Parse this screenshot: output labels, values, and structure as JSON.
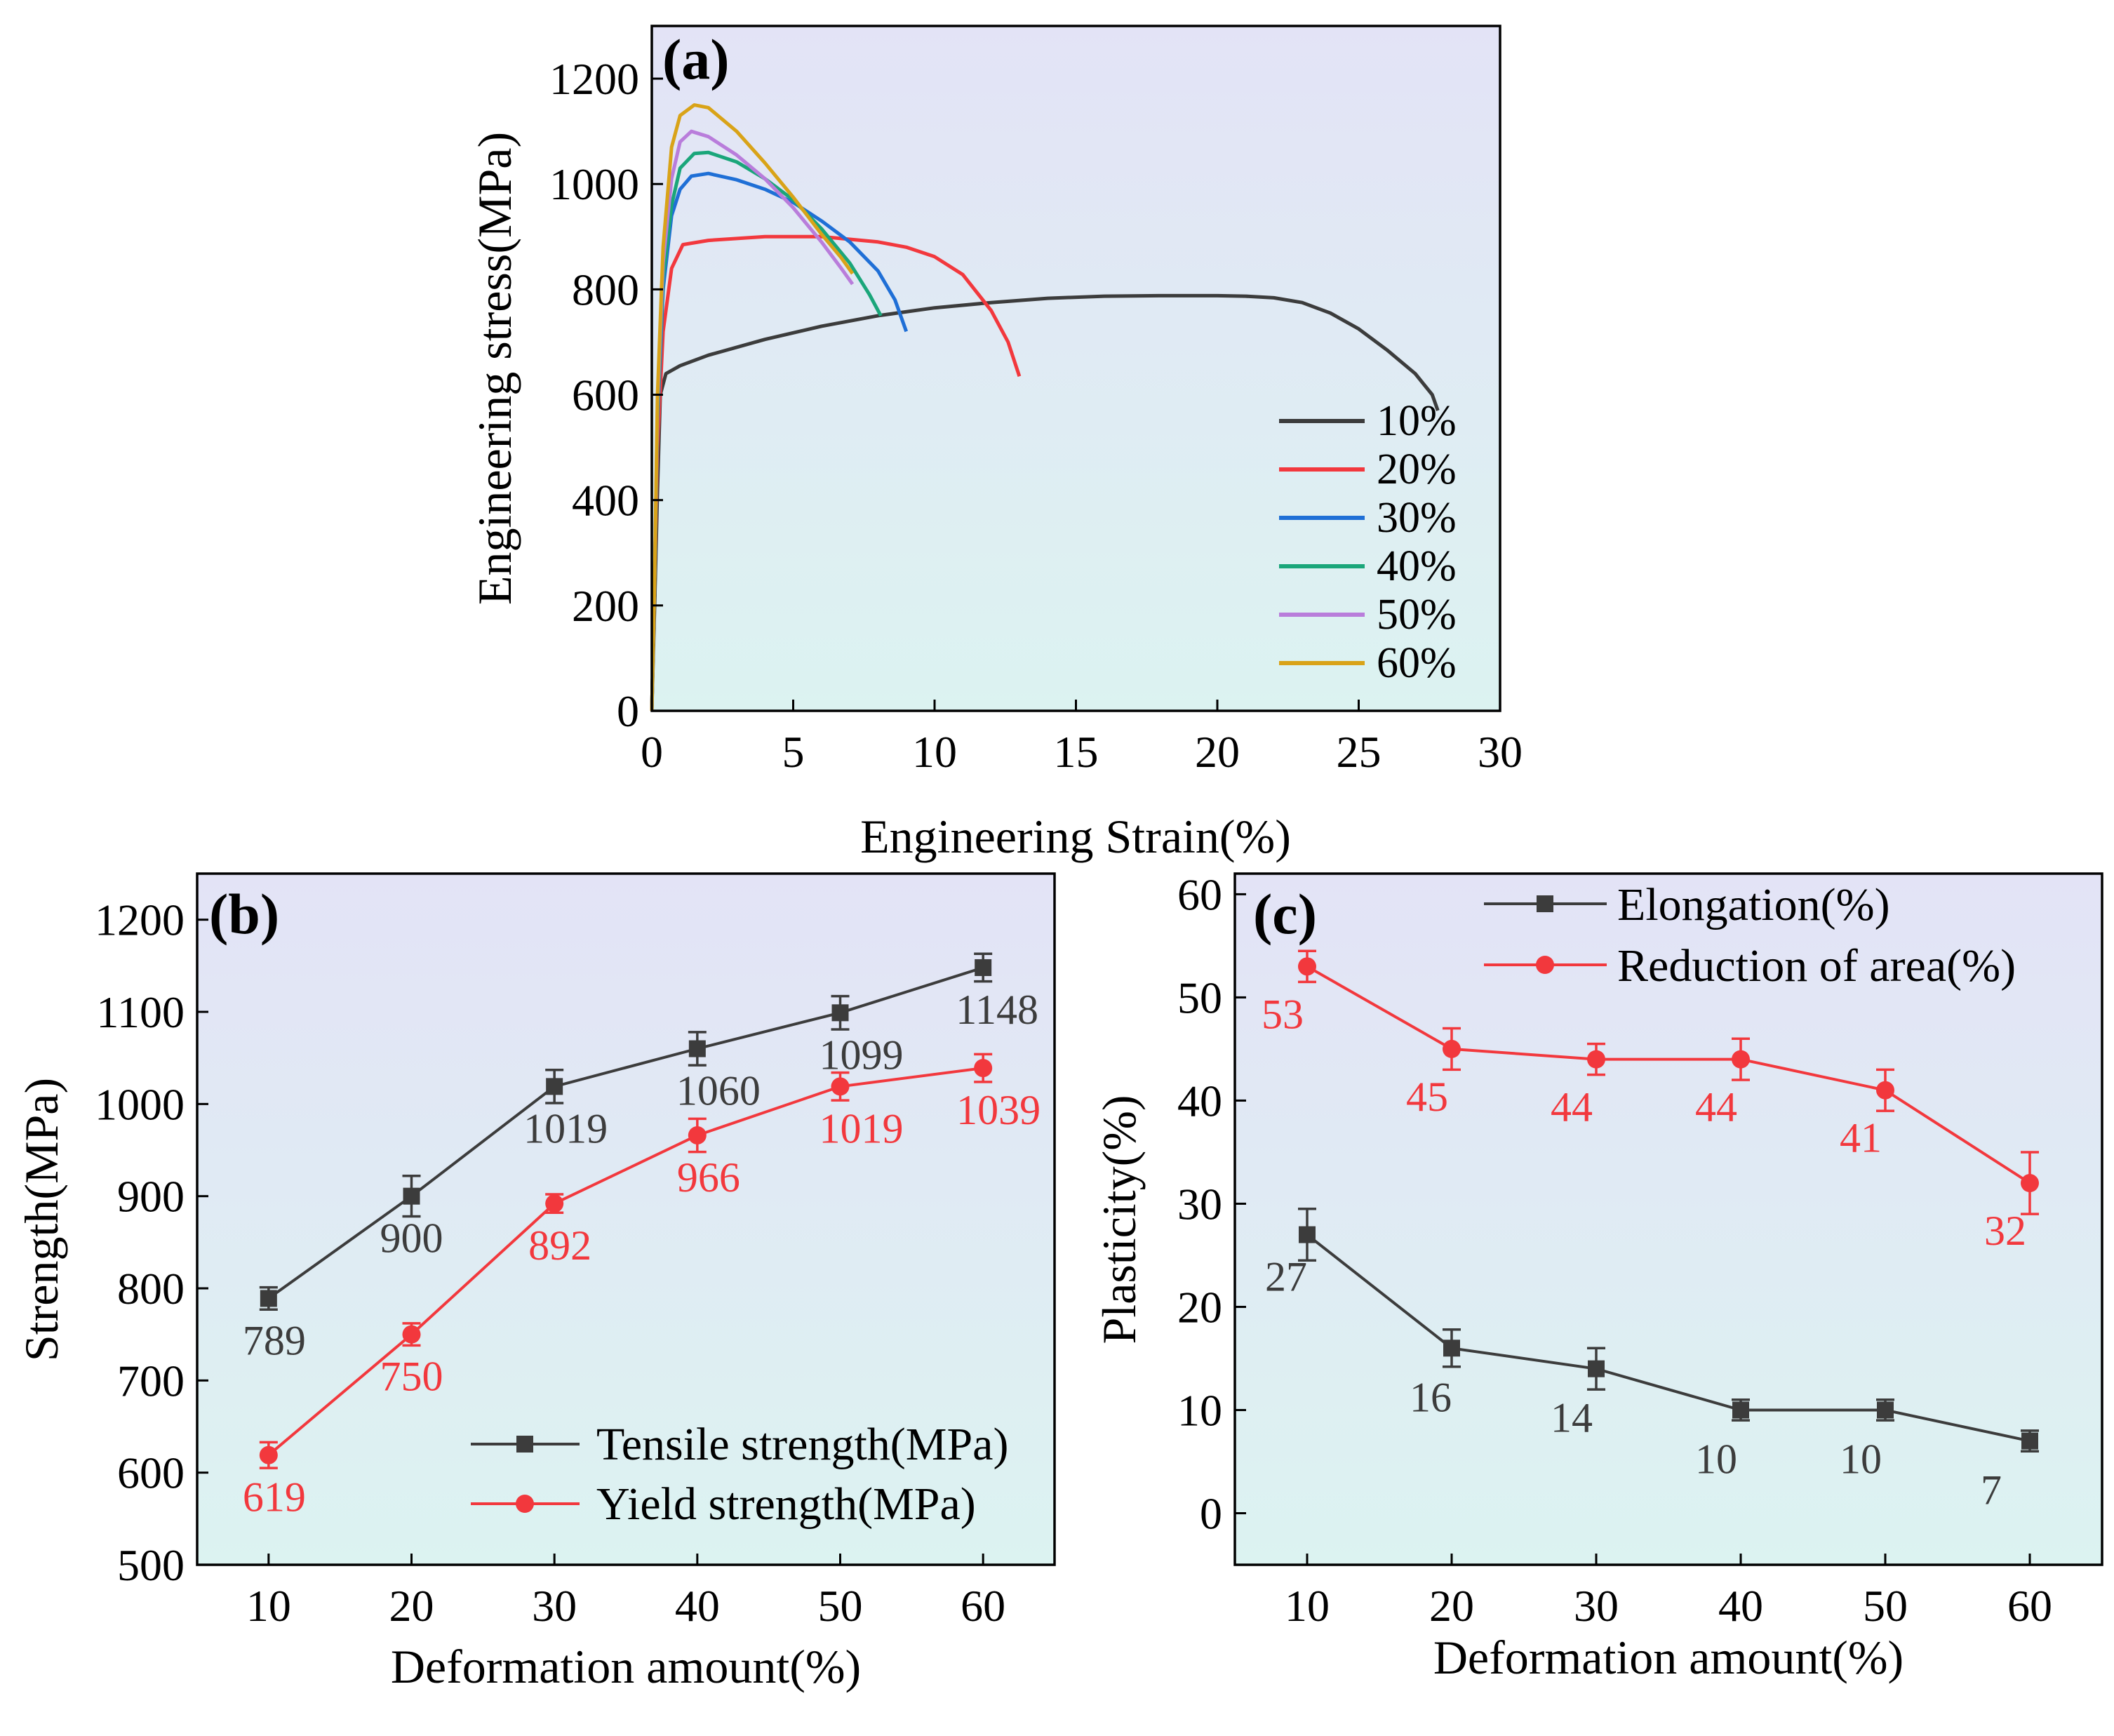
{
  "colors": {
    "black_series": "#3c3c3c",
    "red_series": "#f2383d",
    "blue": "#1f6fd6",
    "green": "#1aa67a",
    "purple": "#b97ddb",
    "gold": "#d9a318",
    "bg_top": "#e3e3f6",
    "bg_bottom": "#dcf3f1"
  },
  "chart_data": [
    {
      "id": "a",
      "panel_label": "(a)",
      "type": "line",
      "xlabel": "Engineering Strain(%)",
      "ylabel": "Engineering stress(MPa)",
      "xlim": [
        0,
        30
      ],
      "ylim": [
        0,
        1300
      ],
      "xticks": [
        0,
        5,
        10,
        15,
        20,
        25,
        30
      ],
      "yticks": [
        0,
        200,
        400,
        600,
        800,
        1000,
        1200
      ],
      "legend_position": "lower-right",
      "series": [
        {
          "name": "10%",
          "color": "#3c3c3c",
          "points": [
            [
              0,
              0
            ],
            [
              0.1,
              200
            ],
            [
              0.2,
              420
            ],
            [
              0.3,
              600
            ],
            [
              0.5,
              640
            ],
            [
              1,
              655
            ],
            [
              2,
              675
            ],
            [
              4,
              705
            ],
            [
              6,
              730
            ],
            [
              8,
              750
            ],
            [
              10,
              765
            ],
            [
              12,
              775
            ],
            [
              14,
              783
            ],
            [
              16,
              787
            ],
            [
              18,
              788
            ],
            [
              20,
              788
            ],
            [
              21,
              787
            ],
            [
              22,
              784
            ],
            [
              23,
              775
            ],
            [
              24,
              755
            ],
            [
              25,
              725
            ],
            [
              26,
              685
            ],
            [
              27,
              640
            ],
            [
              27.6,
              600
            ],
            [
              27.8,
              570
            ]
          ]
        },
        {
          "name": "20%",
          "color": "#f2383d",
          "points": [
            [
              0,
              0
            ],
            [
              0.1,
              250
            ],
            [
              0.2,
              500
            ],
            [
              0.4,
              720
            ],
            [
              0.7,
              840
            ],
            [
              1.1,
              885
            ],
            [
              2,
              893
            ],
            [
              4,
              900
            ],
            [
              6,
              900
            ],
            [
              8,
              890
            ],
            [
              9,
              880
            ],
            [
              10,
              862
            ],
            [
              11,
              828
            ],
            [
              12,
              760
            ],
            [
              12.6,
              700
            ],
            [
              13,
              635
            ]
          ]
        },
        {
          "name": "30%",
          "color": "#1f6fd6",
          "points": [
            [
              0,
              0
            ],
            [
              0.1,
              250
            ],
            [
              0.2,
              550
            ],
            [
              0.4,
              800
            ],
            [
              0.7,
              940
            ],
            [
              1,
              990
            ],
            [
              1.4,
              1015
            ],
            [
              2,
              1020
            ],
            [
              3,
              1008
            ],
            [
              4,
              990
            ],
            [
              5,
              965
            ],
            [
              6,
              930
            ],
            [
              7,
              890
            ],
            [
              8,
              835
            ],
            [
              8.6,
              780
            ],
            [
              9,
              720
            ]
          ]
        },
        {
          "name": "40%",
          "color": "#1aa67a",
          "points": [
            [
              0,
              0
            ],
            [
              0.1,
              250
            ],
            [
              0.2,
              560
            ],
            [
              0.4,
              820
            ],
            [
              0.7,
              960
            ],
            [
              1,
              1030
            ],
            [
              1.5,
              1058
            ],
            [
              2,
              1060
            ],
            [
              3,
              1042
            ],
            [
              4,
              1010
            ],
            [
              5,
              970
            ],
            [
              6,
              915
            ],
            [
              7,
              850
            ],
            [
              7.7,
              790
            ],
            [
              8.1,
              750
            ]
          ]
        },
        {
          "name": "50%",
          "color": "#b97ddb",
          "points": [
            [
              0,
              0
            ],
            [
              0.1,
              250
            ],
            [
              0.2,
              580
            ],
            [
              0.4,
              850
            ],
            [
              0.7,
              1010
            ],
            [
              1,
              1080
            ],
            [
              1.4,
              1100
            ],
            [
              2,
              1090
            ],
            [
              3,
              1055
            ],
            [
              4,
              1010
            ],
            [
              5,
              955
            ],
            [
              6,
              890
            ],
            [
              6.7,
              840
            ],
            [
              7.1,
              810
            ]
          ]
        },
        {
          "name": "60%",
          "color": "#d9a318",
          "points": [
            [
              0,
              0
            ],
            [
              0.1,
              250
            ],
            [
              0.2,
              600
            ],
            [
              0.4,
              880
            ],
            [
              0.7,
              1070
            ],
            [
              1,
              1130
            ],
            [
              1.5,
              1150
            ],
            [
              2,
              1145
            ],
            [
              3,
              1100
            ],
            [
              4,
              1040
            ],
            [
              5,
              975
            ],
            [
              6,
              905
            ],
            [
              6.7,
              860
            ],
            [
              7.1,
              830
            ]
          ]
        }
      ]
    },
    {
      "id": "b",
      "panel_label": "(b)",
      "type": "line",
      "xlabel": "Deformation amount(%)",
      "ylabel": "Strength(MPa)",
      "xlim": [
        5,
        65
      ],
      "ylim": [
        500,
        1250
      ],
      "xticks": [
        10,
        20,
        30,
        40,
        50,
        60
      ],
      "yticks": [
        500,
        600,
        700,
        800,
        900,
        1000,
        1100,
        1200
      ],
      "legend_position": "lower-right",
      "series": [
        {
          "name": "Tensile strength(MPa)",
          "marker": "square",
          "color": "#3c3c3c",
          "x": [
            10,
            20,
            30,
            40,
            50,
            60
          ],
          "values": [
            789,
            900,
            1019,
            1060,
            1099,
            1148
          ],
          "errors": [
            12,
            22,
            18,
            18,
            18,
            15
          ],
          "labels": [
            "789",
            "900",
            "1019",
            "1060",
            "1099",
            "1148"
          ]
        },
        {
          "name": "Yield strength(MPa)",
          "marker": "circle",
          "color": "#f2383d",
          "x": [
            10,
            20,
            30,
            40,
            50,
            60
          ],
          "values": [
            619,
            750,
            892,
            966,
            1019,
            1039
          ],
          "errors": [
            14,
            12,
            10,
            18,
            15,
            15
          ],
          "labels": [
            "619",
            "750",
            "892",
            "966",
            "1019",
            "1039"
          ]
        }
      ]
    },
    {
      "id": "c",
      "panel_label": "(c)",
      "type": "line",
      "xlabel": "Deformation amount(%)",
      "ylabel": "Plasticity(%)",
      "xlim": [
        5,
        65
      ],
      "ylim": [
        -5,
        62
      ],
      "xticks": [
        10,
        20,
        30,
        40,
        50,
        60
      ],
      "yticks": [
        0,
        10,
        20,
        30,
        40,
        50,
        60
      ],
      "legend_position": "top-right",
      "series": [
        {
          "name": "Elongation(%)",
          "marker": "square",
          "color": "#3c3c3c",
          "x": [
            10,
            20,
            30,
            40,
            50,
            60
          ],
          "values": [
            27,
            16,
            14,
            10,
            10,
            7
          ],
          "errors": [
            2.5,
            1.8,
            2,
            1,
            1,
            1
          ],
          "labels": [
            "27",
            "16",
            "14",
            "10",
            "10",
            "7"
          ]
        },
        {
          "name": "Reduction of area(%)",
          "marker": "circle",
          "color": "#f2383d",
          "x": [
            10,
            20,
            30,
            40,
            50,
            60
          ],
          "values": [
            53,
            45,
            44,
            44,
            41,
            32
          ],
          "errors": [
            1.5,
            2,
            1.5,
            2,
            2,
            3
          ],
          "labels": [
            "53",
            "45",
            "44",
            "44",
            "41",
            "32"
          ]
        }
      ]
    }
  ]
}
